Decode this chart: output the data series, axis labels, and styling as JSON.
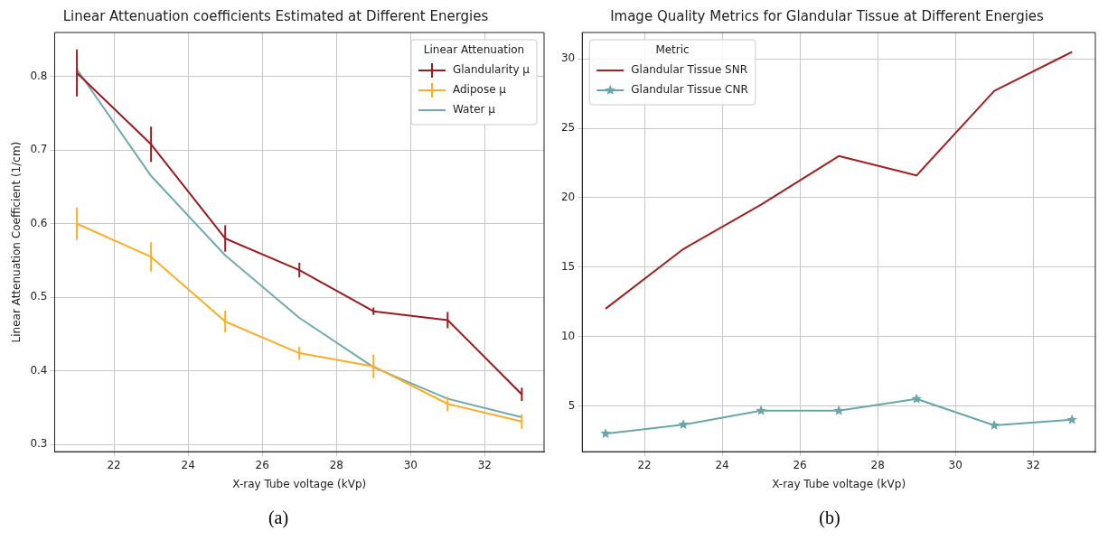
{
  "chart_data": [
    {
      "type": "line",
      "title": "Linear Attenuation coefficients Estimated at Different Energies",
      "xlabel": "X-ray Tube voltage (kVp)",
      "ylabel": "Linear Attenuation Coefficient (1/cm)",
      "legend_title": "Linear Attenuation",
      "annotations": [
        "(a)"
      ],
      "x": [
        21,
        23,
        25,
        27,
        29,
        31,
        33
      ],
      "series": [
        {
          "name": "Glandularity μ",
          "color": "#9b1c1f",
          "values": [
            0.805,
            0.708,
            0.58,
            0.537,
            0.481,
            0.469,
            0.368
          ],
          "errors": [
            0.032,
            0.024,
            0.018,
            0.01,
            0.005,
            0.011,
            0.009
          ]
        },
        {
          "name": "Adipose μ",
          "color": "#fbae25",
          "values": [
            0.6,
            0.555,
            0.467,
            0.424,
            0.406,
            0.355,
            0.331
          ],
          "errors": [
            0.022,
            0.02,
            0.015,
            0.009,
            0.016,
            0.01,
            0.01
          ]
        },
        {
          "name": "Water μ",
          "color": "#71aaae",
          "values": [
            0.81,
            0.665,
            0.557,
            0.472,
            0.405,
            0.362,
            0.337
          ]
        }
      ],
      "xlim": [
        20.4,
        33.6
      ],
      "xticks": [
        22,
        24,
        26,
        28,
        30,
        32
      ],
      "ylim": [
        0.29,
        0.86
      ],
      "yticks": [
        0.3,
        0.4,
        0.5,
        0.6,
        0.7,
        0.8
      ],
      "grid": true,
      "legend": "top right",
      "marker": "none",
      "line_style": "solid"
    },
    {
      "type": "line",
      "title": "Image Quality Metrics for Glandular Tissue at Different Energies",
      "xlabel": "X-ray Tube voltage (kVp)",
      "legend_title": "Metric",
      "annotations": [
        "(b)"
      ],
      "x": [
        21,
        23,
        25,
        27,
        29,
        31,
        33
      ],
      "series": [
        {
          "name": "Glandular Tissue SNR",
          "color": "#a3211f",
          "values": [
            12.0,
            16.3,
            19.5,
            23.0,
            21.6,
            27.7,
            30.5
          ],
          "marker": "none"
        },
        {
          "name": "Glandular Tissue CNR",
          "color": "#6aa6a9",
          "values": [
            3.0,
            3.65,
            4.65,
            4.65,
            5.5,
            3.6,
            4.0
          ],
          "marker": "star"
        }
      ],
      "xlim": [
        20.4,
        33.6
      ],
      "xticks": [
        22,
        24,
        26,
        28,
        30,
        32
      ],
      "ylim": [
        1.7,
        31.9
      ],
      "yticks": [
        5,
        10,
        15,
        20,
        25,
        30
      ],
      "grid": true,
      "legend": "top left",
      "line_style": "solid"
    }
  ]
}
